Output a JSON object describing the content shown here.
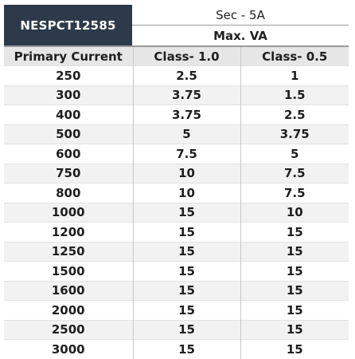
{
  "header": {
    "model": "NESPCT12585",
    "secondary": "Sec - 5A",
    "max_va": "Max. VA"
  },
  "columns": {
    "primary": "Primary Current",
    "class1": "Class- 1.0",
    "class05": "Class- 0.5"
  },
  "rows": [
    {
      "primary": "250",
      "class1": "2.5",
      "class05": "1"
    },
    {
      "primary": "300",
      "class1": "3.75",
      "class05": "1.5"
    },
    {
      "primary": "400",
      "class1": "3.75",
      "class05": "2.5"
    },
    {
      "primary": "500",
      "class1": "5",
      "class05": "3.75"
    },
    {
      "primary": "600",
      "class1": "7.5",
      "class05": "5"
    },
    {
      "primary": "750",
      "class1": "10",
      "class05": "7.5"
    },
    {
      "primary": "800",
      "class1": "10",
      "class05": "7.5"
    },
    {
      "primary": "1000",
      "class1": "15",
      "class05": "10"
    },
    {
      "primary": "1200",
      "class1": "15",
      "class05": "15"
    },
    {
      "primary": "1250",
      "class1": "15",
      "class05": "15"
    },
    {
      "primary": "1500",
      "class1": "15",
      "class05": "15"
    },
    {
      "primary": "1600",
      "class1": "15",
      "class05": "15"
    },
    {
      "primary": "2000",
      "class1": "15",
      "class05": "15"
    },
    {
      "primary": "2500",
      "class1": "15",
      "class05": "15"
    },
    {
      "primary": "3000",
      "class1": "15",
      "class05": "15"
    }
  ],
  "colors": {
    "header_bg": "#2c3a4a",
    "header_text": "#ffffff",
    "column_header_bg": "#e6e6e6",
    "stripe_bg": "#f2f2f2"
  }
}
